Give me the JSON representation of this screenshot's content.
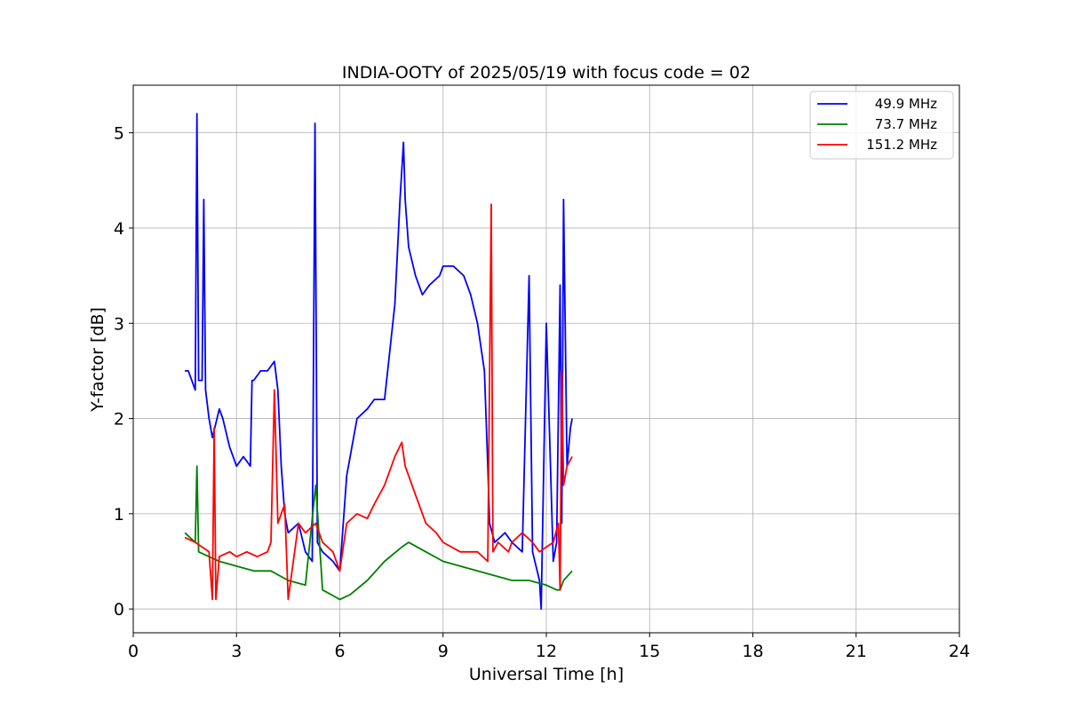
{
  "chart_data": {
    "type": "line",
    "title": "INDIA-OOTY of 2025/05/19 with focus code = 02",
    "xlabel": "Universal Time [h]",
    "ylabel": "Y-factor [dB]",
    "xlim": [
      0,
      24
    ],
    "ylim": [
      -0.25,
      5.5
    ],
    "xticks": [
      0,
      3,
      6,
      9,
      12,
      15,
      18,
      21,
      24
    ],
    "yticks": [
      0,
      1,
      2,
      3,
      4,
      5
    ],
    "grid": true,
    "legend_position": "top-right",
    "series": [
      {
        "name": "49.9 MHz",
        "color": "#0000ff",
        "x": [
          1.5,
          1.6,
          1.8,
          1.85,
          1.9,
          2.0,
          2.05,
          2.1,
          2.2,
          2.3,
          2.5,
          2.6,
          2.8,
          3.0,
          3.2,
          3.4,
          3.45,
          3.5,
          3.7,
          3.9,
          4.1,
          4.2,
          4.3,
          4.4,
          4.5,
          4.8,
          5.0,
          5.2,
          5.28,
          5.35,
          5.5,
          5.8,
          6.0,
          6.2,
          6.5,
          6.8,
          7.0,
          7.3,
          7.6,
          7.75,
          7.85,
          7.9,
          8.0,
          8.2,
          8.4,
          8.6,
          8.9,
          9.0,
          9.3,
          9.6,
          9.8,
          10.0,
          10.2,
          10.3,
          10.35,
          10.5,
          10.8,
          11.0,
          11.3,
          11.5,
          11.6,
          11.8,
          11.85,
          12.0,
          12.2,
          12.3,
          12.4,
          12.45,
          12.5,
          12.6,
          12.7,
          12.75
        ],
        "y": [
          2.5,
          2.5,
          2.3,
          5.2,
          2.4,
          2.4,
          4.3,
          2.3,
          2.0,
          1.8,
          2.1,
          2.0,
          1.7,
          1.5,
          1.6,
          1.5,
          2.4,
          2.4,
          2.5,
          2.5,
          2.6,
          2.3,
          1.5,
          1.0,
          0.8,
          0.9,
          0.6,
          0.5,
          5.1,
          0.7,
          0.6,
          0.5,
          0.4,
          1.4,
          2.0,
          2.1,
          2.2,
          2.2,
          3.2,
          4.3,
          4.9,
          4.3,
          3.8,
          3.5,
          3.3,
          3.4,
          3.5,
          3.6,
          3.6,
          3.5,
          3.3,
          3.0,
          2.5,
          1.5,
          0.9,
          0.7,
          0.8,
          0.7,
          0.6,
          3.5,
          0.6,
          0.3,
          0.0,
          3.0,
          0.5,
          0.7,
          3.4,
          0.9,
          4.3,
          1.5,
          1.9,
          2.0
        ]
      },
      {
        "name": "73.7 MHz",
        "color": "#008000",
        "x": [
          1.5,
          1.8,
          1.85,
          1.9,
          2.2,
          2.5,
          3.0,
          3.5,
          4.0,
          4.5,
          5.0,
          5.3,
          5.5,
          6.0,
          6.3,
          6.8,
          7.3,
          7.8,
          8.0,
          8.5,
          9.0,
          9.5,
          10.0,
          10.5,
          11.0,
          11.5,
          12.0,
          12.3,
          12.4,
          12.5,
          12.75
        ],
        "y": [
          0.8,
          0.7,
          1.5,
          0.6,
          0.55,
          0.5,
          0.45,
          0.4,
          0.4,
          0.3,
          0.25,
          1.3,
          0.2,
          0.1,
          0.15,
          0.3,
          0.5,
          0.65,
          0.7,
          0.6,
          0.5,
          0.45,
          0.4,
          0.35,
          0.3,
          0.3,
          0.25,
          0.2,
          0.2,
          0.3,
          0.4
        ]
      },
      {
        "name": "151.2 MHz",
        "color": "#ff0000",
        "x": [
          1.5,
          1.8,
          2.0,
          2.2,
          2.3,
          2.35,
          2.4,
          2.5,
          2.8,
          3.0,
          3.3,
          3.6,
          3.9,
          4.0,
          4.1,
          4.2,
          4.4,
          4.5,
          4.8,
          5.0,
          5.3,
          5.5,
          5.8,
          6.0,
          6.2,
          6.5,
          6.8,
          7.0,
          7.3,
          7.6,
          7.8,
          7.9,
          8.2,
          8.5,
          8.8,
          9.0,
          9.5,
          10.0,
          10.3,
          10.4,
          10.45,
          10.6,
          10.9,
          11.0,
          11.3,
          11.6,
          11.8,
          12.0,
          12.2,
          12.35,
          12.4,
          12.45,
          12.5,
          12.6,
          12.75
        ],
        "y": [
          0.75,
          0.7,
          0.65,
          0.6,
          0.1,
          1.9,
          0.1,
          0.55,
          0.6,
          0.55,
          0.6,
          0.55,
          0.6,
          0.7,
          2.3,
          0.9,
          1.1,
          0.1,
          0.9,
          0.8,
          0.9,
          0.7,
          0.6,
          0.4,
          0.9,
          1.0,
          0.95,
          1.1,
          1.3,
          1.6,
          1.75,
          1.5,
          1.2,
          0.9,
          0.8,
          0.7,
          0.6,
          0.6,
          0.5,
          4.25,
          0.6,
          0.7,
          0.6,
          0.7,
          0.8,
          0.7,
          0.6,
          0.65,
          0.7,
          0.9,
          0.2,
          2.5,
          1.3,
          1.5,
          1.6
        ]
      }
    ]
  }
}
